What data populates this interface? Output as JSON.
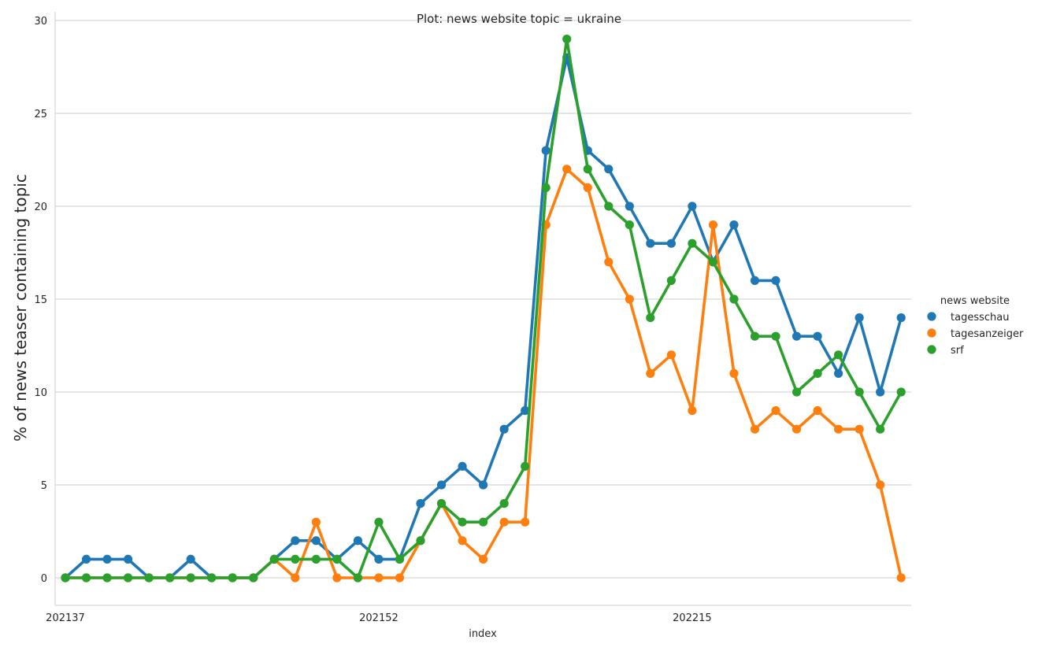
{
  "chart_data": {
    "type": "line",
    "title": "Plot: news website topic = ukraine",
    "xlabel": "index",
    "ylabel": "% of news teaser containing topic",
    "x_tick_labels": [
      "202137",
      "202152",
      "202215"
    ],
    "y_ticks": [
      0,
      5,
      10,
      15,
      20,
      25,
      30
    ],
    "ylim": [
      -1.5,
      30.5
    ],
    "grid": "horizontal",
    "legend": {
      "title": "news website",
      "placement": "right"
    },
    "num_points": 41,
    "series": [
      {
        "name": "tagesschau",
        "color": "#1f77b4",
        "values": [
          0,
          1,
          1,
          1,
          0,
          0,
          1,
          0,
          0,
          0,
          1,
          2,
          2,
          1,
          2,
          1,
          1,
          4,
          5,
          6,
          5,
          8,
          9,
          23,
          28,
          23,
          22,
          20,
          18,
          18,
          20,
          17,
          19,
          16,
          16,
          13,
          13,
          11,
          14,
          10,
          14
        ]
      },
      {
        "name": "tagesanzeiger",
        "color": "#ff7f0e",
        "values": [
          0,
          0,
          0,
          0,
          0,
          0,
          0,
          0,
          0,
          0,
          1,
          0,
          3,
          0,
          0,
          0,
          0,
          2,
          4,
          2,
          1,
          3,
          3,
          19,
          22,
          21,
          17,
          15,
          11,
          12,
          9,
          19,
          11,
          8,
          9,
          8,
          9,
          8,
          8,
          5,
          0
        ]
      },
      {
        "name": "srf",
        "color": "#2ca02c",
        "values": [
          0,
          0,
          0,
          0,
          0,
          0,
          0,
          0,
          0,
          0,
          1,
          1,
          1,
          1,
          0,
          3,
          1,
          2,
          4,
          3,
          3,
          4,
          6,
          21,
          29,
          22,
          20,
          19,
          14,
          16,
          18,
          17,
          15,
          13,
          13,
          10,
          11,
          12,
          10,
          8,
          10
        ]
      }
    ]
  }
}
